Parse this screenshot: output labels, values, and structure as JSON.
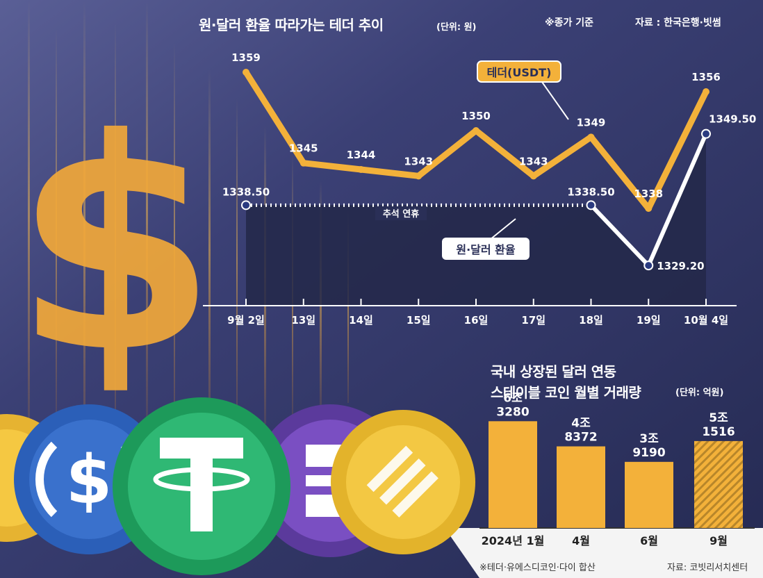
{
  "line_chart_header": {
    "title": "원·달러 환율 따라가는 테더 추이",
    "unit": "(단위: 원)",
    "note": "※종가 기준",
    "source": "자료 : 한국은행·빗썸"
  },
  "bar_chart_header": {
    "title_line1": "국내 상장된 달러 연동",
    "title_line2": "스테이블 코인 월별 거래량",
    "unit": "(단위: 억원)"
  },
  "footer": {
    "note": "※테더·유에스디코인·다이 합산",
    "source": "자료: 코빗리서치센터"
  },
  "colors": {
    "tether_line": "#f3b13a",
    "krw_line": "#ffffff",
    "krw_area": "#232849",
    "bar": "#f3b13a",
    "bar_hatch": "#b8862a",
    "background": "#2a2f57"
  },
  "chart_data": [
    {
      "type": "line",
      "categories": [
        "9월 2일",
        "13일",
        "14일",
        "15일",
        "16일",
        "17일",
        "18일",
        "19일",
        "10월 4일"
      ],
      "series": [
        {
          "name": "테더(USDT)",
          "values": [
            1359,
            1345,
            1344,
            1343,
            1350,
            1343,
            1349,
            1338,
            1356
          ],
          "labels": [
            "1359",
            "1345",
            "1344",
            "1343",
            "1350",
            "1343",
            "1349",
            "1338",
            "1356"
          ]
        },
        {
          "name": "원·달러 환율",
          "values": [
            1338.5,
            null,
            null,
            null,
            null,
            null,
            1338.5,
            1329.2,
            1349.5
          ],
          "labels": [
            "1338.50",
            "",
            "",
            "",
            "",
            "",
            "1338.50",
            "1329.20",
            "1349.50"
          ]
        }
      ],
      "annotations": [
        {
          "text": "추석 연휴",
          "between": [
            "9월 2일",
            "18일"
          ]
        }
      ],
      "ylim": [
        1320,
        1365
      ],
      "grid": false
    },
    {
      "type": "bar",
      "categories": [
        "2024년 1월",
        "4월",
        "6월",
        "9월"
      ],
      "values": [
        63280,
        48372,
        39190,
        51516
      ],
      "labels": [
        [
          "6조",
          "3280"
        ],
        [
          "4조",
          "8372"
        ],
        [
          "3조",
          "9190"
        ],
        [
          "5조",
          "1516"
        ]
      ],
      "hatched_index": 3,
      "ylim": [
        0,
        70000
      ]
    }
  ]
}
